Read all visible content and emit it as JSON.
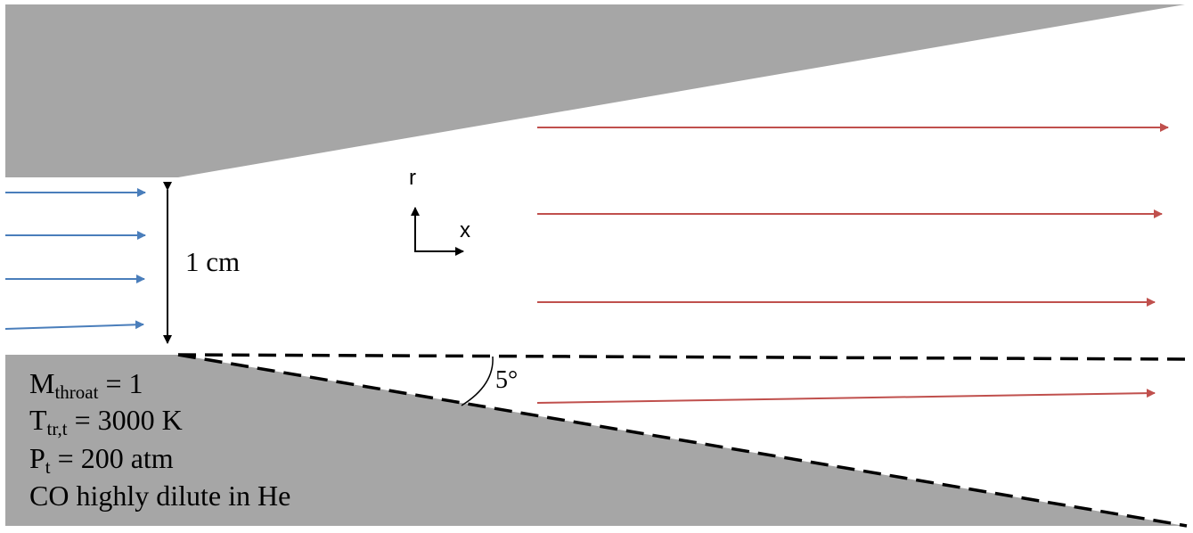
{
  "colors": {
    "wall": "#a6a6a6",
    "inflow_arrow": "#4a7ebb",
    "outflow_arrow": "#c0504d",
    "line": "#000000"
  },
  "labels": {
    "throat_height": "1 cm",
    "angle": "5°",
    "axis_r": "r",
    "axis_x": "x"
  },
  "conditions": [
    {
      "symbol": "M",
      "subscript": "throat",
      "rest": " = 1"
    },
    {
      "symbol": "T",
      "subscript": "tr,t",
      "rest": " = 3000 K"
    },
    {
      "symbol": "P",
      "subscript": "t",
      "rest": " = 200 atm"
    },
    {
      "symbol": "",
      "subscript": "",
      "rest": "CO highly dilute in He"
    }
  ]
}
